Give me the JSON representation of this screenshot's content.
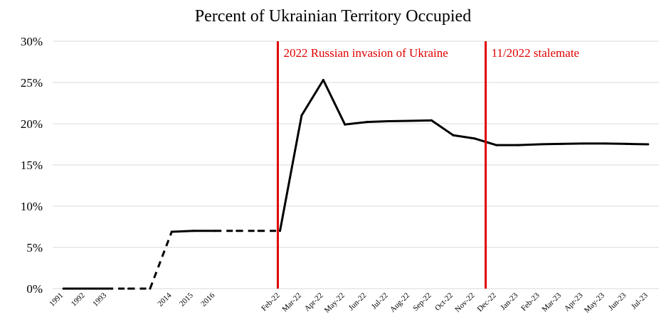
{
  "chart_data": {
    "type": "line",
    "title": "Percent of Ukrainian Territory Occupied",
    "xlabel": "",
    "ylabel": "",
    "ylim": [
      0,
      30
    ],
    "y_ticks": [
      "0%",
      "5%",
      "10%",
      "15%",
      "20%",
      "25%",
      "30%"
    ],
    "y_tick_values": [
      0,
      5,
      10,
      15,
      20,
      25,
      30
    ],
    "grid": "horizontal",
    "categories": [
      "1991",
      "1992",
      "1993",
      "",
      "",
      "2014",
      "2015",
      "2016",
      "",
      "",
      "Feb-22",
      "Mar-22",
      "Apr-22",
      "May-22",
      "Jun-22",
      "Jul-22",
      "Aug-22",
      "Sep-22",
      "Oct-22",
      "Nov-22",
      "Dec-22",
      "Jan-23",
      "Feb-23",
      "Mar-23",
      "Apr-23",
      "May-23",
      "Jun-23",
      "Jul-23"
    ],
    "values": [
      0,
      0,
      0,
      0,
      0,
      6.9,
      7.0,
      7.0,
      7.0,
      7.0,
      7.0,
      21.0,
      25.3,
      19.9,
      20.2,
      20.3,
      20.35,
      20.4,
      18.6,
      18.2,
      17.4,
      17.4,
      17.5,
      17.55,
      17.6,
      17.6,
      17.55,
      17.5
    ],
    "dashed_segments": [
      [
        2,
        3
      ],
      [
        3,
        4
      ],
      [
        4,
        5
      ],
      [
        7,
        8
      ],
      [
        8,
        9
      ],
      [
        9,
        10
      ]
    ],
    "line_color": "#000000",
    "annotations": [
      {
        "type": "vline",
        "category_index": 10,
        "offset": -0.1,
        "label": "2022 Russian invasion of Ukraine",
        "color": "#e00000"
      },
      {
        "type": "vline",
        "category_index": 19,
        "offset": 0.5,
        "label": "11/2022 stalemate",
        "color": "#e00000"
      }
    ]
  }
}
